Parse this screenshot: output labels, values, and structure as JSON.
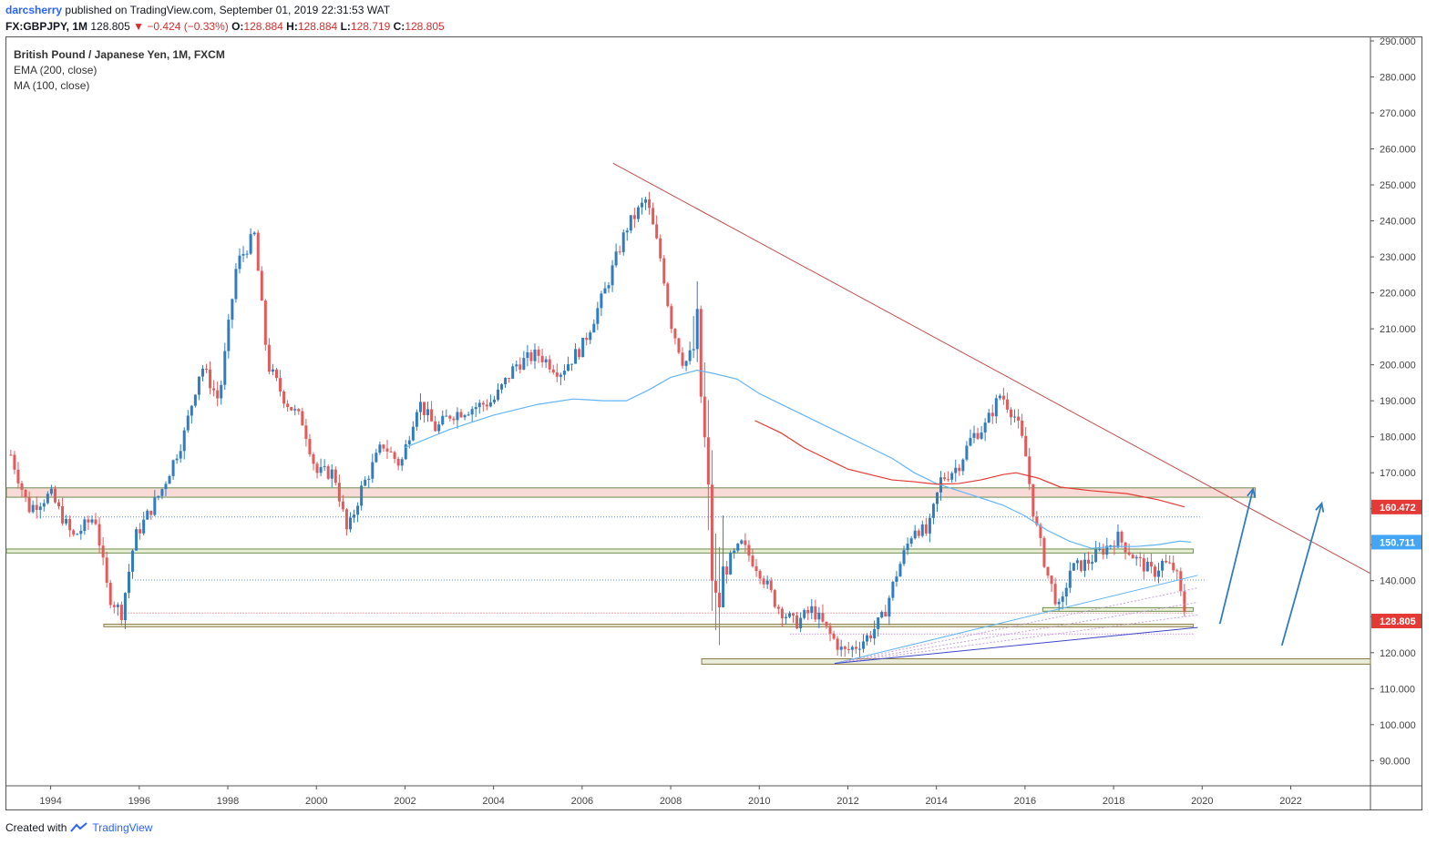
{
  "header": {
    "author": "darcsherry",
    "published": "published on TradingView.com, September 01, 2019 22:31:53 WAT",
    "symbol": "FX:GBPJPY, 1M",
    "last": "128.805",
    "change_arrow": "▼",
    "change": "−0.424 (−0.33%)",
    "o_label": "O:",
    "o_value": "128.884",
    "h_label": "H:",
    "h_value": "128.884",
    "l_label": "L:",
    "l_value": "128.719",
    "c_label": "C:",
    "c_value": "128.805"
  },
  "legend": {
    "title": "British Pound / Japanese Yen, 1M, FXCM",
    "ema": "EMA (200, close)",
    "ma": "MA (100, close)"
  },
  "footer": {
    "created_with": "Created with",
    "brand": "TradingView"
  },
  "chart_data": {
    "type": "candlestick",
    "title": "British Pound / Japanese Yen, 1M, FXCM",
    "xlabel": "",
    "ylabel": "",
    "x_ticks": [
      "1994",
      "1996",
      "1998",
      "2000",
      "2002",
      "2004",
      "2006",
      "2008",
      "2010",
      "2012",
      "2014",
      "2016",
      "2018",
      "2020",
      "2022"
    ],
    "x_range": [
      1993.0,
      2023.8
    ],
    "y_ticks": [
      90,
      100,
      110,
      120,
      130,
      140,
      150,
      160,
      170,
      180,
      190,
      200,
      210,
      220,
      230,
      240,
      250,
      260,
      270,
      280,
      290
    ],
    "y_tick_labels": [
      "90.000",
      "100.000",
      "110.000",
      "120.000",
      "130.000",
      "140.000",
      "150.000",
      "160.000",
      "170.000",
      "180.000",
      "190.000",
      "200.000",
      "210.000",
      "220.000",
      "230.000",
      "240.000",
      "250.000",
      "260.000",
      "270.000",
      "280.000",
      "290.000"
    ],
    "ylim": [
      83,
      291
    ],
    "colors": {
      "up": "#2f7dc0",
      "down": "#e35a5a",
      "ema": "#e53935",
      "ma": "#64b5f6",
      "trend": "#c0504d",
      "arrow": "#2f7dc0"
    },
    "price_labels": [
      {
        "value": 160.472,
        "text": "160.472",
        "color": "#e53935"
      },
      {
        "value": 150.711,
        "text": "150.711",
        "color": "#42a5f5"
      },
      {
        "value": 128.805,
        "text": "128.805",
        "color": "#e53935"
      }
    ],
    "path_anchors": [
      [
        1993.1,
        175
      ],
      [
        1993.5,
        160
      ],
      [
        1994.0,
        164
      ],
      [
        1994.5,
        152
      ],
      [
        1995.0,
        158
      ],
      [
        1995.3,
        136
      ],
      [
        1995.6,
        131
      ],
      [
        1995.9,
        152
      ],
      [
        1996.5,
        165
      ],
      [
        1997.0,
        180
      ],
      [
        1997.4,
        200
      ],
      [
        1997.8,
        190
      ],
      [
        1998.2,
        228
      ],
      [
        1998.6,
        236
      ],
      [
        1998.9,
        200
      ],
      [
        1999.3,
        190
      ],
      [
        1999.7,
        184
      ],
      [
        2000.0,
        170
      ],
      [
        2000.4,
        170
      ],
      [
        2000.7,
        153
      ],
      [
        2001.0,
        165
      ],
      [
        2001.5,
        178
      ],
      [
        2001.9,
        172
      ],
      [
        2002.3,
        190
      ],
      [
        2002.7,
        182
      ],
      [
        2003.0,
        186
      ],
      [
        2003.5,
        188
      ],
      [
        2004.0,
        190
      ],
      [
        2004.5,
        200
      ],
      [
        2005.0,
        203
      ],
      [
        2005.5,
        198
      ],
      [
        2006.0,
        205
      ],
      [
        2006.5,
        220
      ],
      [
        2007.0,
        238
      ],
      [
        2007.45,
        246
      ],
      [
        2007.8,
        228
      ],
      [
        2008.0,
        212
      ],
      [
        2008.3,
        200
      ],
      [
        2008.6,
        206
      ],
      [
        2008.75,
        180
      ],
      [
        2008.85,
        160
      ],
      [
        2009.0,
        130
      ],
      [
        2009.3,
        145
      ],
      [
        2009.6,
        150
      ],
      [
        2010.0,
        143
      ],
      [
        2010.4,
        133
      ],
      [
        2010.8,
        128
      ],
      [
        2011.2,
        132
      ],
      [
        2011.6,
        125
      ],
      [
        2011.9,
        120
      ],
      [
        2012.2,
        122
      ],
      [
        2012.5,
        125
      ],
      [
        2012.8,
        130
      ],
      [
        2013.1,
        142
      ],
      [
        2013.5,
        155
      ],
      [
        2013.8,
        153
      ],
      [
        2014.1,
        168
      ],
      [
        2014.5,
        172
      ],
      [
        2014.8,
        180
      ],
      [
        2015.1,
        183
      ],
      [
        2015.45,
        192
      ],
      [
        2015.8,
        185
      ],
      [
        2016.0,
        176
      ],
      [
        2016.2,
        158
      ],
      [
        2016.5,
        142
      ],
      [
        2016.8,
        131
      ],
      [
        2017.0,
        143
      ],
      [
        2017.4,
        145
      ],
      [
        2017.8,
        149
      ],
      [
        2018.1,
        152
      ],
      [
        2018.5,
        146
      ],
      [
        2018.9,
        142
      ],
      [
        2019.1,
        145
      ],
      [
        2019.4,
        143
      ],
      [
        2019.55,
        134
      ],
      [
        2019.67,
        128.8
      ]
    ],
    "ema200": [
      [
        2009.9,
        184.5
      ],
      [
        2010.5,
        181
      ],
      [
        2011.0,
        177
      ],
      [
        2011.5,
        174
      ],
      [
        2012.0,
        171
      ],
      [
        2012.5,
        169.5
      ],
      [
        2013.0,
        168
      ],
      [
        2013.5,
        167.5
      ],
      [
        2014.0,
        166.8
      ],
      [
        2014.5,
        167
      ],
      [
        2015.0,
        168
      ],
      [
        2015.5,
        169.5
      ],
      [
        2015.8,
        170
      ],
      [
        2016.3,
        168.5
      ],
      [
        2016.8,
        166
      ],
      [
        2017.5,
        165
      ],
      [
        2018.3,
        164.2
      ],
      [
        2019.0,
        162.5
      ],
      [
        2019.6,
        160.5
      ]
    ],
    "ma100": [
      [
        2002.0,
        177
      ],
      [
        2003.0,
        182
      ],
      [
        2004.0,
        186
      ],
      [
        2005.0,
        189
      ],
      [
        2005.8,
        190.5
      ],
      [
        2006.5,
        190
      ],
      [
        2007.0,
        190
      ],
      [
        2007.5,
        193
      ],
      [
        2008.0,
        196.5
      ],
      [
        2008.6,
        198.5
      ],
      [
        2009.0,
        197.5
      ],
      [
        2009.5,
        196
      ],
      [
        2010.0,
        192
      ],
      [
        2010.5,
        189
      ],
      [
        2011.0,
        186
      ],
      [
        2011.5,
        183
      ],
      [
        2012.0,
        180
      ],
      [
        2012.5,
        177
      ],
      [
        2013.0,
        174
      ],
      [
        2013.5,
        170
      ],
      [
        2014.0,
        167
      ],
      [
        2014.5,
        165
      ],
      [
        2015.0,
        163
      ],
      [
        2015.5,
        161
      ],
      [
        2016.0,
        158
      ],
      [
        2016.5,
        154
      ],
      [
        2017.0,
        151
      ],
      [
        2017.5,
        149
      ],
      [
        2018.0,
        149.5
      ],
      [
        2018.5,
        149.5
      ],
      [
        2019.0,
        150
      ],
      [
        2019.5,
        151
      ],
      [
        2019.75,
        150.7
      ]
    ],
    "zones": [
      {
        "y1": 163.2,
        "y2": 165.8,
        "x1": 1993.0,
        "x2": 2021.2,
        "fill": "#f8dbd6",
        "stroke": "#6b8e4e"
      },
      {
        "y1": 147.7,
        "y2": 148.8,
        "x1": 1993.0,
        "x2": 2019.8,
        "fill": "#eaf0d6",
        "stroke": "#6b8e4e"
      },
      {
        "y1": 127.2,
        "y2": 127.9,
        "x1": 1995.2,
        "x2": 2019.8,
        "fill": "#eaf0d6",
        "stroke": "#8c7a4b"
      },
      {
        "y1": 116.8,
        "y2": 118.3,
        "x1": 2008.7,
        "x2": 2023.8,
        "fill": "#e8ecd9",
        "stroke": "#8c7a4b"
      },
      {
        "y1": 131.5,
        "y2": 132.5,
        "x1": 2016.4,
        "x2": 2019.8,
        "fill": "#eaf0d6",
        "stroke": "#6b8e4e"
      }
    ],
    "dotted_levels": [
      {
        "y": 157.7,
        "x1": 1993.7,
        "x2": 2020.0,
        "color": "#5b8def"
      },
      {
        "y": 140.2,
        "x1": 1995.9,
        "x2": 2020.1,
        "color": "#5b8def"
      },
      {
        "y": 131.0,
        "x1": 1995.5,
        "x2": 2019.8,
        "color": "#e06060"
      },
      {
        "y": 125.2,
        "x1": 2010.7,
        "x2": 2019.8,
        "color": "#c060d0"
      }
    ],
    "trendline": {
      "x1": 2006.7,
      "y1": 256.0,
      "x2": 2023.8,
      "y2": 142.0
    },
    "fan_lines": [
      {
        "x1": 2011.7,
        "y1": 117.0,
        "x2": 2019.9,
        "y2": 141.5,
        "color": "#64b5f6",
        "dash": ""
      },
      {
        "x1": 2011.7,
        "y1": 117.0,
        "x2": 2019.9,
        "y2": 138.0,
        "color": "#c9a0dc",
        "dash": "2,2"
      },
      {
        "x1": 2011.7,
        "y1": 117.0,
        "x2": 2019.9,
        "y2": 134.0,
        "color": "#c9a0dc",
        "dash": "2,2"
      },
      {
        "x1": 2011.7,
        "y1": 117.0,
        "x2": 2019.9,
        "y2": 130.5,
        "color": "#c9a0dc",
        "dash": "2,2"
      },
      {
        "x1": 2011.7,
        "y1": 117.0,
        "x2": 2019.9,
        "y2": 127.0,
        "color": "#3c46c8",
        "dash": ""
      }
    ],
    "arrows": [
      {
        "x1": 2020.4,
        "y1": 128.0,
        "x2": 2021.15,
        "y2": 165.5
      },
      {
        "x1": 2021.8,
        "y1": 122.0,
        "x2": 2022.7,
        "y2": 161.5
      }
    ]
  }
}
